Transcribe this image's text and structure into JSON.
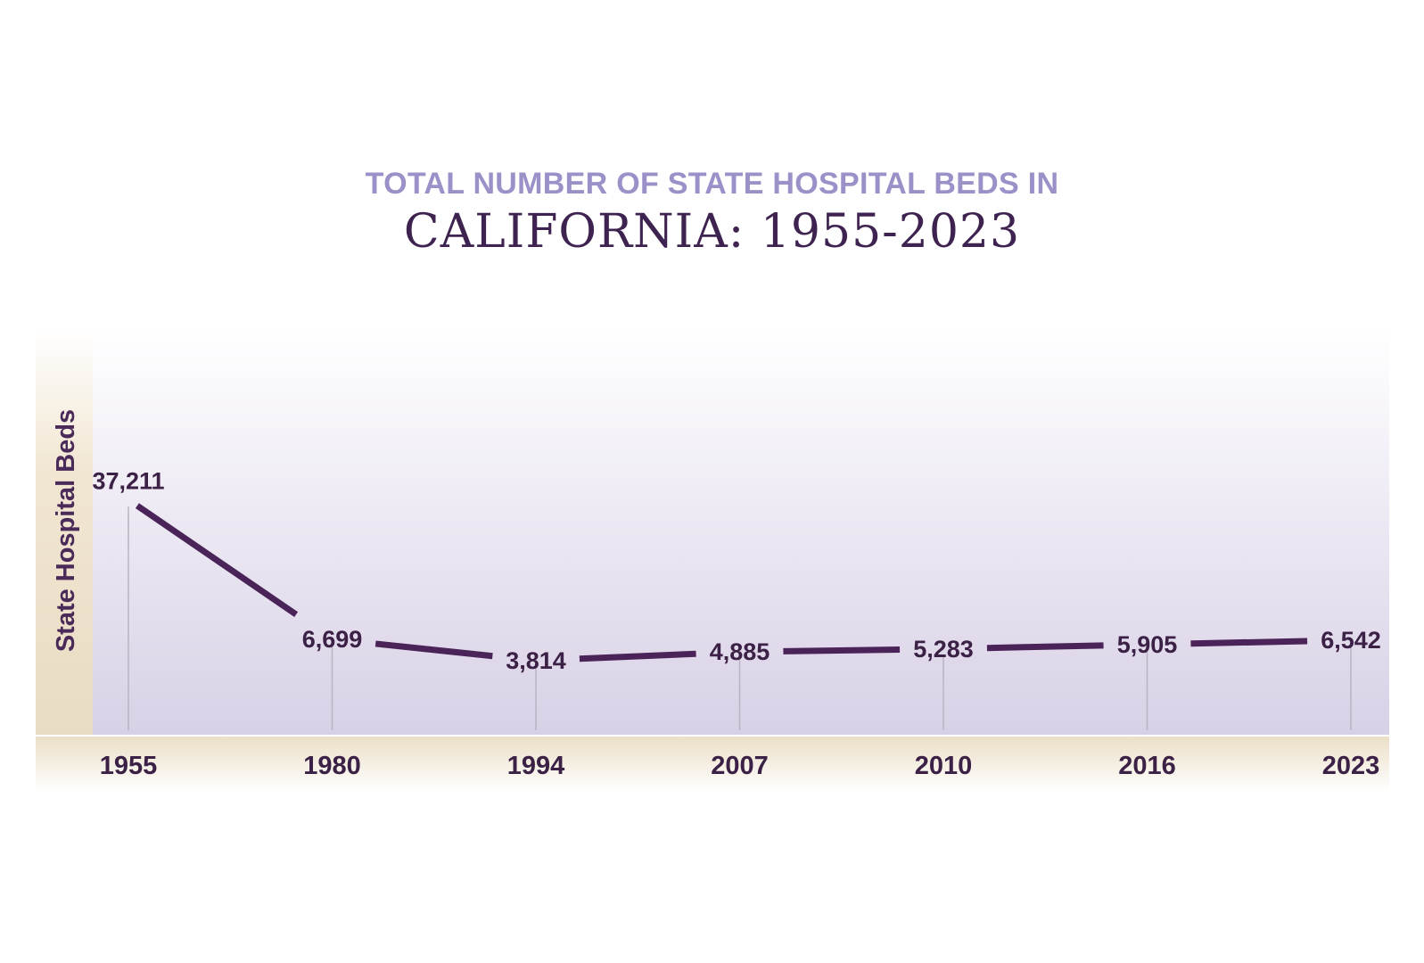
{
  "chart_data": {
    "type": "line",
    "title": "TOTAL NUMBER OF STATE HOSPITAL BEDS IN",
    "subtitle": "CALIFORNIA: 1955-2023",
    "xlabel": "",
    "ylabel": "State Hospital Beds",
    "categories": [
      "1955",
      "1980",
      "1994",
      "2007",
      "2010",
      "2016",
      "2023"
    ],
    "series": [
      {
        "values": [
          37211,
          6699,
          3814,
          4885,
          5283,
          5905,
          6542
        ],
        "labels": [
          "37,211",
          "6,699",
          "3,814",
          "4,885",
          "5,283",
          "5,905",
          "6,542"
        ]
      }
    ],
    "ylim": [
      0,
      40000
    ],
    "grid": false,
    "legend": "none",
    "colors": {
      "line": "#4a2458",
      "title_primary": "#9c90c9",
      "title_secondary": "#3e2350",
      "plot_bg_top": "#ffffff",
      "plot_bg_bottom": "#d8d0e6",
      "axis_band": "#efe3cc"
    }
  }
}
